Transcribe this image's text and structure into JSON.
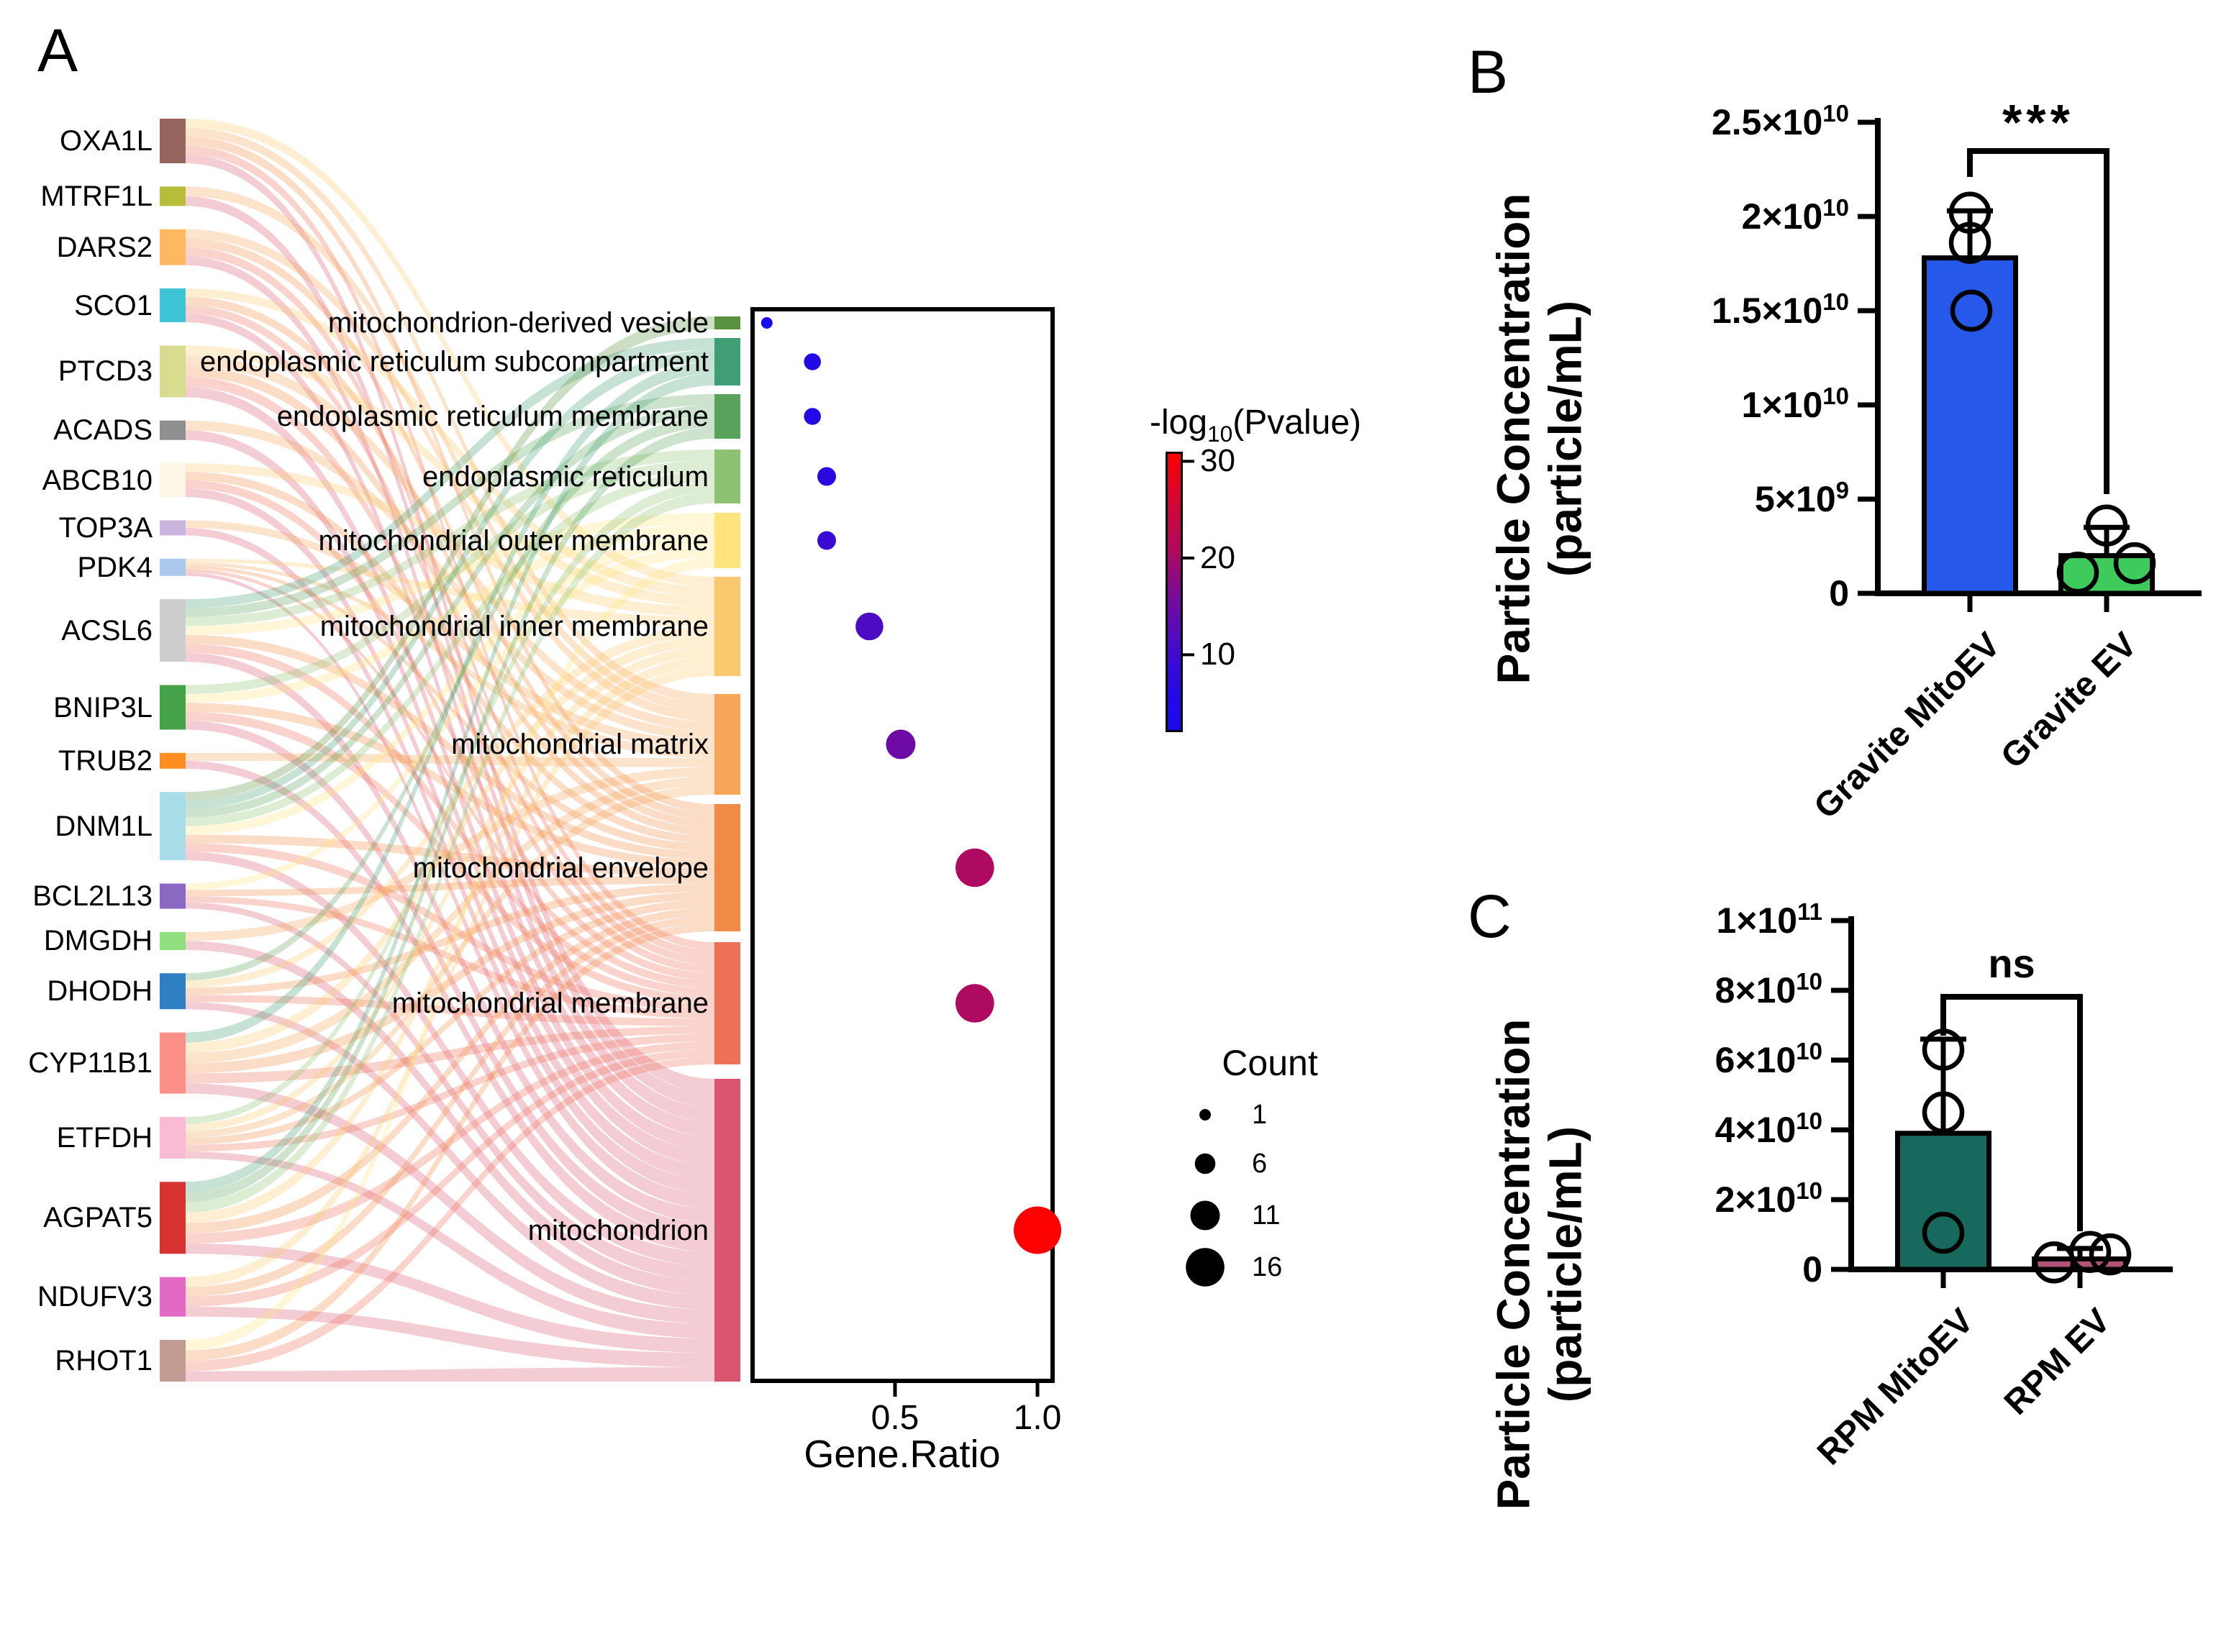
{
  "panels": {
    "a": "A",
    "b": "B",
    "c": "C"
  },
  "chart_data": [
    {
      "type": "sankey+dot",
      "description": "GO cellular-component enrichment: gene-to-term alluvial diagram with dot plot",
      "genes": [
        "OXA1L",
        "MTRF1L",
        "DARS2",
        "SCO1",
        "PTCD3",
        "ACADS",
        "ABCB10",
        "TOP3A",
        "PDK4",
        "ACSL6",
        "BNIP3L",
        "TRUB2",
        "DNM1L",
        "BCL2L13",
        "DMGDH",
        "DHODH",
        "CYP11B1",
        "ETFDH",
        "AGPAT5",
        "NDUFV3",
        "RHOT1"
      ],
      "gene_colors": [
        "#97655f",
        "#b7bd3a",
        "#fdb860",
        "#3fc4d6",
        "#d7dc8e",
        "#8f8f8f",
        "#fdf6e9",
        "#c8b4de",
        "#abc9ec",
        "#cdcdcd",
        "#44a248",
        "#fd8d21",
        "#a7dce8",
        "#8b68c3",
        "#8fdf7f",
        "#2f80c2",
        "#fb9088",
        "#f9bad4",
        "#d63331",
        "#e36ac4",
        "#c29c92"
      ],
      "terms": [
        "mitochondrion-derived vesicle",
        "endoplasmic reticulum subcompartment",
        "endoplasmic reticulum membrane",
        "endoplasmic reticulum",
        "mitochondrial outer membrane",
        "mitochondrial inner membrane",
        "mitochondrial matrix",
        "mitochondrial envelope",
        "mitochondrial membrane",
        "mitochondrion"
      ],
      "term_colors": [
        "#59923f",
        "#3f9e74",
        "#58a25b",
        "#8cc271",
        "#ffe37d",
        "#fbc96d",
        "#f6a656",
        "#f18a46",
        "#ee7057",
        "#d95570"
      ],
      "links": [
        [
          0,
          5
        ],
        [
          0,
          6
        ],
        [
          0,
          7
        ],
        [
          0,
          8
        ],
        [
          0,
          9
        ],
        [
          1,
          6
        ],
        [
          1,
          9
        ],
        [
          2,
          6
        ],
        [
          2,
          7
        ],
        [
          2,
          8
        ],
        [
          2,
          9
        ],
        [
          3,
          5
        ],
        [
          3,
          7
        ],
        [
          3,
          8
        ],
        [
          3,
          9
        ],
        [
          4,
          5
        ],
        [
          4,
          6
        ],
        [
          4,
          7
        ],
        [
          4,
          8
        ],
        [
          4,
          9
        ],
        [
          5,
          6
        ],
        [
          5,
          9
        ],
        [
          6,
          5
        ],
        [
          6,
          7
        ],
        [
          6,
          8
        ],
        [
          6,
          9
        ],
        [
          7,
          6
        ],
        [
          7,
          9
        ],
        [
          8,
          5
        ],
        [
          8,
          6
        ],
        [
          8,
          7
        ],
        [
          8,
          8
        ],
        [
          8,
          9
        ],
        [
          9,
          1
        ],
        [
          9,
          2
        ],
        [
          9,
          3
        ],
        [
          9,
          4
        ],
        [
          9,
          7
        ],
        [
          9,
          8
        ],
        [
          9,
          9
        ],
        [
          10,
          3
        ],
        [
          10,
          4
        ],
        [
          10,
          7
        ],
        [
          10,
          8
        ],
        [
          10,
          9
        ],
        [
          11,
          6
        ],
        [
          11,
          9
        ],
        [
          12,
          0
        ],
        [
          12,
          1
        ],
        [
          12,
          2
        ],
        [
          12,
          3
        ],
        [
          12,
          4
        ],
        [
          12,
          7
        ],
        [
          12,
          8
        ],
        [
          12,
          9
        ],
        [
          13,
          4
        ],
        [
          13,
          7
        ],
        [
          13,
          8
        ],
        [
          13,
          9
        ],
        [
          14,
          6
        ],
        [
          14,
          9
        ],
        [
          15,
          2
        ],
        [
          15,
          5
        ],
        [
          15,
          7
        ],
        [
          15,
          8
        ],
        [
          15,
          9
        ],
        [
          16,
          1
        ],
        [
          16,
          5
        ],
        [
          16,
          6
        ],
        [
          16,
          7
        ],
        [
          16,
          8
        ],
        [
          16,
          9
        ],
        [
          17,
          3
        ],
        [
          17,
          5
        ],
        [
          17,
          6
        ],
        [
          17,
          7
        ],
        [
          17,
          8
        ],
        [
          17,
          9
        ],
        [
          18,
          1
        ],
        [
          18,
          2
        ],
        [
          18,
          3
        ],
        [
          18,
          5
        ],
        [
          18,
          7
        ],
        [
          18,
          8
        ],
        [
          18,
          9
        ],
        [
          19,
          5
        ],
        [
          19,
          7
        ],
        [
          19,
          8
        ],
        [
          19,
          9
        ],
        [
          20,
          4
        ],
        [
          20,
          7
        ],
        [
          20,
          8
        ],
        [
          20,
          9
        ]
      ],
      "dot": {
        "xlabel": "Gene.Ratio",
        "xticks": [
          "0.5",
          "1.0"
        ],
        "xtick_values": [
          0.5,
          1.0
        ],
        "xlim": [
          0,
          1.05
        ],
        "gene_ratio": [
          0.05,
          0.21,
          0.21,
          0.26,
          0.26,
          0.41,
          0.52,
          0.78,
          0.78,
          1.0
        ],
        "count": [
          1,
          4,
          4,
          5,
          5,
          10,
          11,
          16,
          16,
          21
        ],
        "neglog10_pvalue": [
          5,
          7,
          7,
          8,
          11,
          14,
          18,
          24,
          24,
          31
        ],
        "dot_colors": [
          "#1a0bee",
          "#2209e6",
          "#2209e6",
          "#2a09e0",
          "#3a0bd4",
          "#4c0cc4",
          "#6e0ba4",
          "#ad0a60",
          "#ad0a60",
          "#fb0200"
        ]
      }
    },
    {
      "type": "bar",
      "categories": [
        "Gravite MitoEV",
        "Gravite EV"
      ],
      "values": [
        17800000000.0,
        2000000000.0
      ],
      "points": [
        [
          20200000000.0,
          18600000000.0,
          15000000000.0
        ],
        [
          1100000000.0,
          1600000000.0,
          3600000000.0
        ]
      ],
      "whisker_top": [
        20300000000.0,
        3500000000.0
      ],
      "bar_colors": [
        "#2658e9",
        "#3ecb5b"
      ],
      "significance": "***",
      "ylabel_lines": [
        "Particle Concentration",
        "(particle/mL)"
      ],
      "ylim": [
        0,
        25000000000.0
      ],
      "yticks": [
        [
          "2.5×10",
          "10",
          25000000000.0
        ],
        [
          "2×10",
          "10",
          20000000000.0
        ],
        [
          "1.5×10",
          "10",
          15000000000.0
        ],
        [
          "1×10",
          "10",
          10000000000.0
        ],
        [
          "5×10",
          "9",
          5000000000.0
        ],
        [
          "0",
          "",
          0
        ]
      ]
    },
    {
      "type": "bar",
      "categories": [
        "RPM MitoEV",
        "RPM EV"
      ],
      "values": [
        39000000000.0,
        3000000000.0
      ],
      "points": [
        [
          63000000000.0,
          45000000000.0,
          10500000000.0
        ],
        [
          2000000000.0,
          5000000000.0,
          4300000000.0
        ]
      ],
      "whisker_top": [
        66000000000.0,
        6000000000.0
      ],
      "bar_colors": [
        "#17695e",
        "#b2537a"
      ],
      "significance": "ns",
      "ylabel_lines": [
        "Particle Concentration",
        "(particle/mL)"
      ],
      "ylim": [
        0,
        100000000000.0
      ],
      "yticks": [
        [
          "1×10",
          "11",
          100000000000.0
        ],
        [
          "8×10",
          "10",
          80000000000.0
        ],
        [
          "6×10",
          "10",
          60000000000.0
        ],
        [
          "4×10",
          "10",
          40000000000.0
        ],
        [
          "2×10",
          "10",
          20000000000.0
        ],
        [
          "0",
          "",
          0
        ]
      ]
    }
  ],
  "legend_pvalue": {
    "prefix": "-log",
    "sub": "10",
    "suffix": "(Pvalue)",
    "ticks": [
      "30",
      "20",
      "10"
    ],
    "tick_values": [
      30,
      20,
      10
    ],
    "scale_top": 31,
    "scale_bottom": 2
  },
  "legend_count": {
    "title": "Count",
    "items": [
      "1",
      "6",
      "11",
      "16"
    ],
    "item_values": [
      1,
      6,
      11,
      16
    ]
  }
}
